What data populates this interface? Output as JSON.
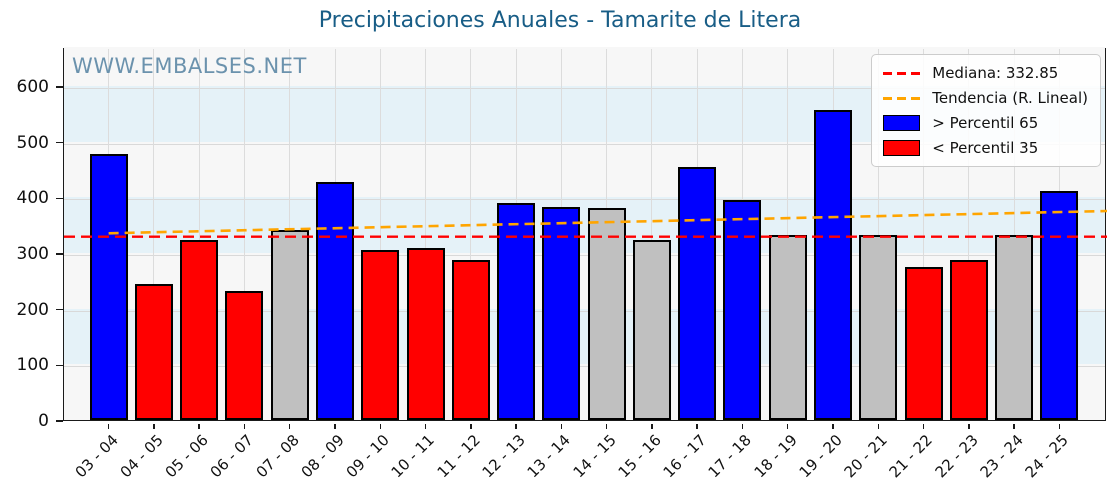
{
  "title": {
    "text": "Precipitaciones Anuales - Tamarite de Litera",
    "color": "#185d86"
  },
  "watermark": {
    "text": "WWW.EMBALSES.NET",
    "color": "#6b92ad"
  },
  "chart_data": {
    "type": "bar",
    "title": "Precipitaciones Anuales - Tamarite de Litera",
    "xlabel": "",
    "ylabel": "",
    "ylim": [
      0,
      670
    ],
    "yticks": [
      0,
      100,
      200,
      300,
      400,
      500,
      600
    ],
    "grid": true,
    "categories": [
      "03 - 04",
      "04 - 05",
      "05 - 06",
      "06 - 07",
      "07 - 08",
      "08 - 09",
      "09 - 10",
      "10 - 11",
      "11 - 12",
      "12 - 13",
      "13 - 14",
      "14 - 15",
      "15 - 16",
      "16 - 17",
      "17 - 18",
      "18 - 19",
      "19 - 20",
      "20 - 21",
      "21 - 22",
      "22 - 23",
      "23 - 24",
      "24 - 25"
    ],
    "values": [
      478,
      244,
      324,
      231,
      342,
      427,
      306,
      309,
      288,
      390,
      383,
      381,
      324,
      455,
      396,
      332.85,
      556,
      332.85,
      274,
      288,
      332.85,
      411
    ],
    "bar_classes": [
      "above",
      "below",
      "below",
      "below",
      "mid",
      "above",
      "below",
      "below",
      "below",
      "above",
      "above",
      "mid",
      "mid",
      "above",
      "above",
      "mid",
      "above",
      "mid",
      "below",
      "below",
      "mid",
      "above"
    ],
    "class_colors": {
      "above": "#0000ff",
      "below": "#ff0000",
      "mid": "#c0c0c0"
    },
    "median": {
      "value": 332.85,
      "color": "#ff0000"
    },
    "trend": {
      "value_at_first_bar": 339,
      "value_at_right_edge": 379,
      "color": "#ffa500"
    },
    "band_colors": [
      "#f7f7f7",
      "#e5f2f8"
    ],
    "legend_position": "top-right",
    "legend": [
      {
        "marker": "dash",
        "color": "#ff0000",
        "label": "Mediana: 332.85"
      },
      {
        "marker": "dash",
        "color": "#ffa500",
        "label": "Tendencia (R. Lineal)"
      },
      {
        "marker": "patch",
        "color": "#0000ff",
        "label": "> Percentil 65"
      },
      {
        "marker": "patch",
        "color": "#ff0000",
        "label": "< Percentil 35"
      }
    ]
  }
}
